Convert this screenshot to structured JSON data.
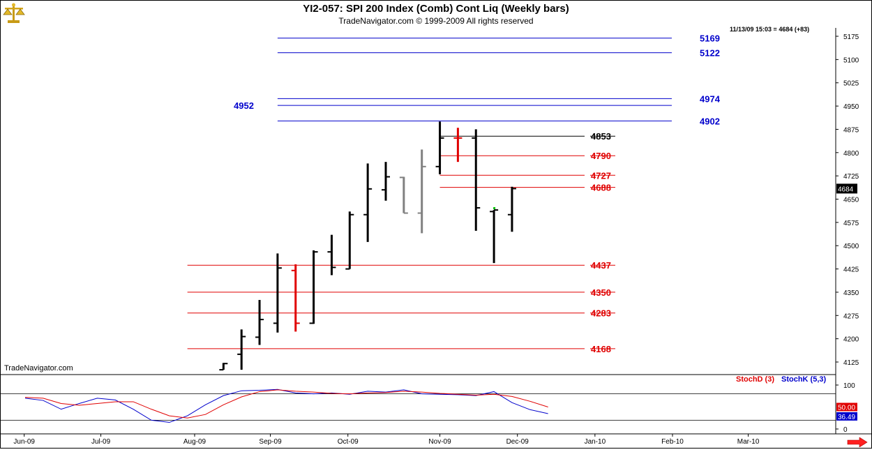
{
  "header": {
    "title": "YI2-057:  SPI 200 Index (Comb) Cont Liq  (Weekly bars)",
    "subtitle": "TradeNavigator.com © 1999-2009 All rights reserved",
    "timestamp": "11/13/09 15:03 = 4684 (+83)",
    "watermark": "TradeNavigator.com",
    "logo_icon": "gold-scale-logo"
  },
  "colors": {
    "blue": "#0000cc",
    "red": "#e00000",
    "black": "#000000",
    "gray": "#808080",
    "green": "#00c000"
  },
  "chart_data": [
    {
      "type": "ohlc",
      "name": "price",
      "ylim": [
        4100,
        5200
      ],
      "y_ticks": [
        4125,
        4200,
        4275,
        4350,
        4425,
        4500,
        4575,
        4650,
        4725,
        4800,
        4875,
        4950,
        5025,
        5100,
        5175
      ],
      "x_tick_labels": [
        "Jun-09",
        "Jul-09",
        "Aug-09",
        "Sep-09",
        "Oct-09",
        "Nov-09",
        "Dec-09",
        "Jan-10",
        "Feb-10",
        "Mar-10"
      ],
      "x_tick_weeks": [
        -0.05,
        4.2,
        9.4,
        13.6,
        17.9,
        23.0,
        27.3,
        31.6,
        35.9,
        40.1
      ],
      "last_price_label": "4684",
      "bars": [
        {
          "week": 11.0,
          "open": 4100,
          "high": 4122,
          "low": 4100,
          "close": 4120,
          "color": "black"
        },
        {
          "week": 12.0,
          "open": 4150,
          "high": 4230,
          "low": 4100,
          "close": 4207,
          "color": "black"
        },
        {
          "week": 13.0,
          "open": 4205,
          "high": 4325,
          "low": 4180,
          "close": 4262,
          "color": "black"
        },
        {
          "week": 14.0,
          "open": 4250,
          "high": 4475,
          "low": 4220,
          "close": 4428,
          "color": "black"
        },
        {
          "week": 15.0,
          "open": 4420,
          "high": 4440,
          "low": 4223,
          "close": 4250,
          "color": "red"
        },
        {
          "week": 16.0,
          "open": 4250,
          "high": 4485,
          "low": 4248,
          "close": 4480,
          "color": "black"
        },
        {
          "week": 17.0,
          "open": 4480,
          "high": 4535,
          "low": 4405,
          "close": 4430,
          "color": "black"
        },
        {
          "week": 18.0,
          "open": 4425,
          "high": 4610,
          "low": 4425,
          "close": 4600,
          "color": "black"
        },
        {
          "week": 19.0,
          "open": 4600,
          "high": 4765,
          "low": 4512,
          "close": 4683,
          "color": "black"
        },
        {
          "week": 20.0,
          "open": 4680,
          "high": 4770,
          "low": 4645,
          "close": 4722,
          "color": "black"
        },
        {
          "week": 21.0,
          "open": 4720,
          "high": 4722,
          "low": 4605,
          "close": 4605,
          "color": "gray"
        },
        {
          "week": 22.0,
          "open": 4605,
          "high": 4810,
          "low": 4540,
          "close": 4755,
          "color": "gray"
        },
        {
          "week": 23.0,
          "open": 4755,
          "high": 4900,
          "low": 4730,
          "close": 4847,
          "color": "black"
        },
        {
          "week": 24.0,
          "open": 4847,
          "high": 4880,
          "low": 4770,
          "close": 4847,
          "color": "red"
        },
        {
          "week": 25.0,
          "open": 4847,
          "high": 4875,
          "low": 4548,
          "close": 4622,
          "color": "black"
        },
        {
          "week": 26.0,
          "open": 4610,
          "high": 4615,
          "low": 4444,
          "close": 4615,
          "color": "black"
        },
        {
          "week": 27.0,
          "open": 4600,
          "high": 4690,
          "low": 4545,
          "close": 4684,
          "color": "black"
        }
      ],
      "levels": [
        {
          "value": 5169,
          "label": "5169",
          "color": "blue",
          "from_week": 14.0
        },
        {
          "value": 5122,
          "label": "5122",
          "color": "blue",
          "from_week": 14.0
        },
        {
          "value": 4974,
          "label": "4974",
          "color": "blue",
          "from_week": 14.0
        },
        {
          "value": 4952,
          "label": "4952",
          "color": "blue",
          "from_week": 14.0,
          "label_side": "left"
        },
        {
          "value": 4902,
          "label": "4902",
          "color": "blue",
          "from_week": 14.0
        },
        {
          "value": 4853,
          "label": "4853",
          "color": "black",
          "from_week": 23.0
        },
        {
          "value": 4790,
          "label": "4790",
          "color": "red",
          "from_week": 23.0
        },
        {
          "value": 4727,
          "label": "4727",
          "color": "red",
          "from_week": 23.0
        },
        {
          "value": 4688,
          "label": "4688",
          "color": "red",
          "from_week": 23.0
        },
        {
          "value": 4437,
          "label": "4437",
          "color": "red",
          "from_week": 9.0
        },
        {
          "value": 4350,
          "label": "4350",
          "color": "red",
          "from_week": 9.0
        },
        {
          "value": 4283,
          "label": "4283",
          "color": "red",
          "from_week": 9.0
        },
        {
          "value": 4168,
          "label": "4168",
          "color": "red",
          "from_week": 9.0
        }
      ]
    },
    {
      "type": "line",
      "name": "stochastic",
      "ylim": [
        -7,
        120
      ],
      "y_ticks": [
        0,
        100
      ],
      "ref_lines": [
        80,
        20
      ],
      "legend": [
        "StochD (3)",
        "StochK (5,3)"
      ],
      "last_value_labels": [
        "50.00",
        "36.49"
      ],
      "series": [
        {
          "name": "StochK (5,3)",
          "color": "blue",
          "values": [
            [
              0.0,
              70
            ],
            [
              1.0,
              65
            ],
            [
              2.0,
              45
            ],
            [
              3.0,
              58
            ],
            [
              4.0,
              70
            ],
            [
              5.0,
              66
            ],
            [
              6.0,
              45
            ],
            [
              7.0,
              20
            ],
            [
              8.0,
              15
            ],
            [
              9.0,
              30
            ],
            [
              10.0,
              55
            ],
            [
              11.0,
              76
            ],
            [
              12.0,
              87
            ],
            [
              13.0,
              88
            ],
            [
              14.0,
              90
            ],
            [
              15.0,
              82
            ],
            [
              16.0,
              80
            ],
            [
              17.0,
              82
            ],
            [
              18.0,
              79
            ],
            [
              19.0,
              86
            ],
            [
              20.0,
              84
            ],
            [
              21.0,
              89
            ],
            [
              22.0,
              80
            ],
            [
              23.0,
              79
            ],
            [
              24.0,
              78
            ],
            [
              25.0,
              76
            ],
            [
              26.0,
              85
            ],
            [
              27.0,
              60
            ],
            [
              28.0,
              44
            ],
            [
              29.0,
              35
            ]
          ]
        },
        {
          "name": "StochD (3)",
          "color": "red",
          "values": [
            [
              0.0,
              72
            ],
            [
              1.0,
              70
            ],
            [
              2.0,
              58
            ],
            [
              3.0,
              54
            ],
            [
              4.0,
              58
            ],
            [
              5.0,
              62
            ],
            [
              6.0,
              62
            ],
            [
              7.0,
              45
            ],
            [
              8.0,
              30
            ],
            [
              9.0,
              25
            ],
            [
              10.0,
              33
            ],
            [
              11.0,
              55
            ],
            [
              12.0,
              73
            ],
            [
              13.0,
              85
            ],
            [
              14.0,
              89
            ],
            [
              15.0,
              86
            ],
            [
              16.0,
              84
            ],
            [
              17.0,
              81
            ],
            [
              18.0,
              80
            ],
            [
              19.0,
              82
            ],
            [
              20.0,
              83
            ],
            [
              21.0,
              86
            ],
            [
              22.0,
              84
            ],
            [
              23.0,
              81
            ],
            [
              24.0,
              79
            ],
            [
              25.0,
              77
            ],
            [
              26.0,
              79
            ],
            [
              27.0,
              74
            ],
            [
              28.0,
              63
            ],
            [
              29.0,
              50
            ]
          ]
        }
      ]
    }
  ]
}
